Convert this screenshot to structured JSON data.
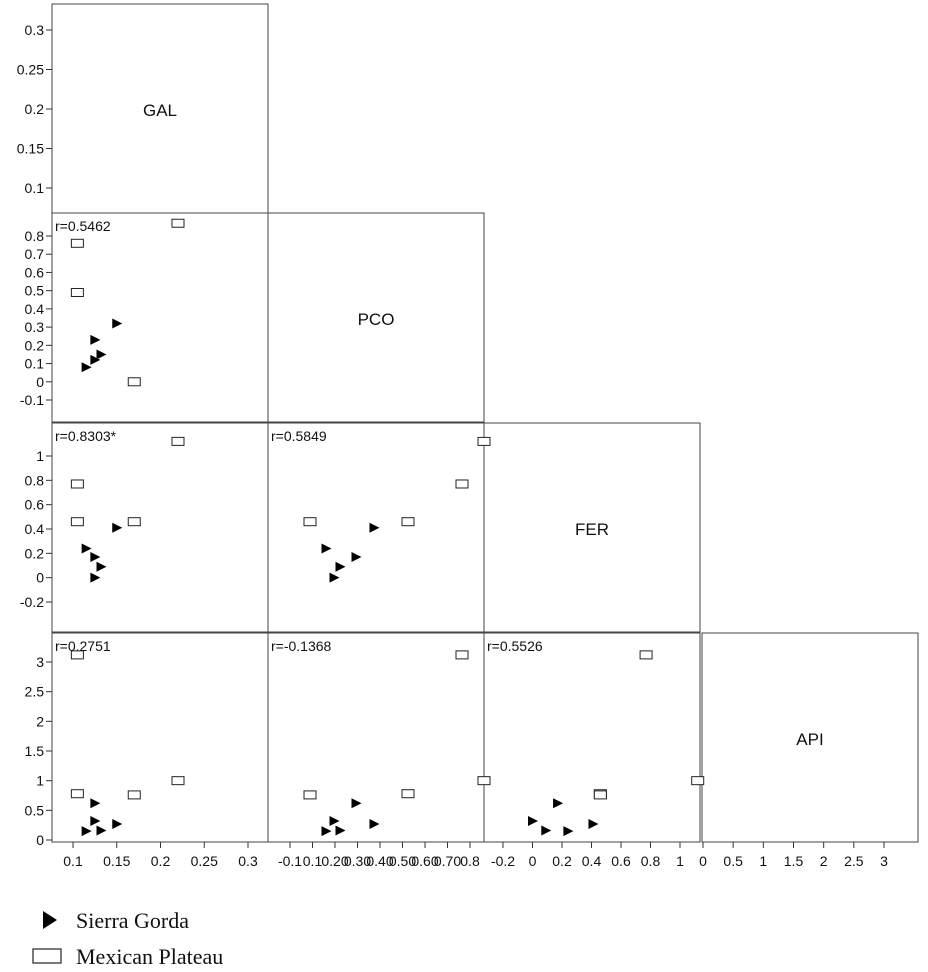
{
  "chart_data": {
    "type": "scatter",
    "variables": [
      "GAL",
      "PCO",
      "FER",
      "API"
    ],
    "groups": [
      {
        "name": "Sierra Gorda",
        "marker": "triangle-right",
        "color": "#000000"
      },
      {
        "name": "Mexican Plateau",
        "marker": "open-rectangle",
        "color": "#000000"
      }
    ],
    "axis_ticks": {
      "GAL": [
        "0.1",
        "0.15",
        "0.2",
        "0.25",
        "0.3"
      ],
      "PCO": [
        "-0.1",
        "0",
        "0.1",
        "0.2",
        "0.3",
        "0.4",
        "0.5",
        "0.6",
        "0.7",
        "0.8"
      ],
      "FER": [
        "-0.2",
        "0",
        "0.2",
        "0.4",
        "0.6",
        "0.8",
        "1"
      ],
      "API": [
        "0",
        "0.5",
        "1",
        "1.5",
        "2",
        "2.5",
        "3"
      ]
    },
    "axis_tick_text": {
      "GAL": [
        "0.1",
        "0.15",
        "0.2",
        "0.25",
        "0.3"
      ],
      "PCO": [
        "-0.1",
        "0.1",
        "0.20",
        "0.30",
        "0.40",
        "0.50",
        "0.60",
        "0.70",
        "0.8"
      ],
      "FER": [
        "-0.2",
        "0",
        "0.2",
        "0.4",
        "0.6",
        "0.8",
        "1"
      ],
      "API": [
        "0",
        "0.5",
        "1",
        "1.5",
        "2",
        "2.5",
        "3"
      ]
    },
    "axis_ranges": {
      "GAL": [
        0.075,
        0.33
      ],
      "PCO": [
        -0.12,
        0.88
      ],
      "FER": [
        -0.22,
        1.15
      ],
      "API": [
        -0.05,
        3.3
      ]
    },
    "observations": {
      "Sierra Gorda": [
        {
          "GAL": 0.115,
          "PCO": 0.08,
          "FER": 0.24,
          "API": 0.15
        },
        {
          "GAL": 0.125,
          "PCO": 0.23,
          "FER": 0.17,
          "API": 0.62
        },
        {
          "GAL": 0.125,
          "PCO": 0.12,
          "FER": 0.0,
          "API": 0.32
        },
        {
          "GAL": 0.132,
          "PCO": 0.15,
          "FER": 0.09,
          "API": 0.16
        },
        {
          "GAL": 0.15,
          "PCO": 0.32,
          "FER": 0.41,
          "API": 0.27
        }
      ],
      "Mexican Plateau": [
        {
          "GAL": 0.105,
          "PCO": 0.76,
          "FER": 0.77,
          "API": 3.12
        },
        {
          "GAL": 0.105,
          "PCO": 0.49,
          "FER": 0.46,
          "API": 0.78
        },
        {
          "GAL": 0.17,
          "PCO": 0.0,
          "FER": 0.46,
          "API": 0.76
        },
        {
          "GAL": 0.22,
          "PCO": 0.87,
          "FER": 1.12,
          "API": 1.0
        }
      ]
    },
    "correlations": [
      {
        "row": "PCO",
        "col": "GAL",
        "label": "r=0.5462"
      },
      {
        "row": "FER",
        "col": "GAL",
        "label": "r=0.8303*"
      },
      {
        "row": "FER",
        "col": "PCO",
        "label": "r=0.5849"
      },
      {
        "row": "API",
        "col": "GAL",
        "label": "r=0.2751"
      },
      {
        "row": "API",
        "col": "PCO",
        "label": "r=-0.1368"
      },
      {
        "row": "API",
        "col": "FER",
        "label": "r=0.5526"
      }
    ],
    "grid": false,
    "legend_position": "bottom-left"
  }
}
